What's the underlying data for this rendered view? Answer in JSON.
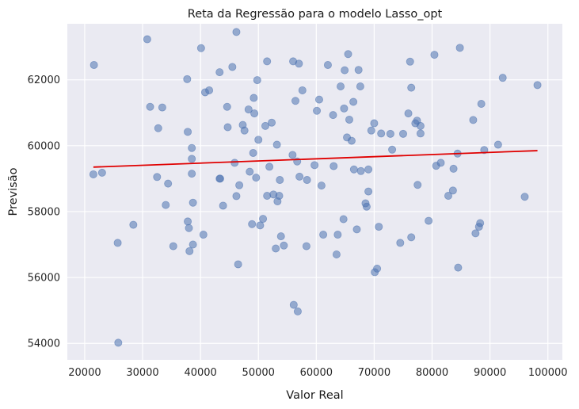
{
  "chart_data": {
    "type": "scatter",
    "title": "Reta da Regressão para o modelo Lasso_opt",
    "xlabel": "Valor Real",
    "ylabel": "Previsão",
    "xlim": [
      17000,
      102500
    ],
    "ylim": [
      53500,
      63700
    ],
    "xticks": [
      20000,
      30000,
      40000,
      50000,
      60000,
      70000,
      80000,
      90000,
      100000
    ],
    "yticks": [
      54000,
      56000,
      58000,
      60000,
      62000
    ],
    "grid": true,
    "colors": {
      "background": "#eaeaf2",
      "points": "#4c72b0",
      "regression_line": "#e00000"
    },
    "regression_line": {
      "x": [
        21500,
        98200
      ],
      "y": [
        59350,
        59850
      ]
    },
    "points": [
      [
        21600,
        62450
      ],
      [
        21500,
        59130
      ],
      [
        23000,
        59180
      ],
      [
        25700,
        57050
      ],
      [
        25800,
        54020
      ],
      [
        28400,
        57600
      ],
      [
        30800,
        63230
      ],
      [
        31300,
        61180
      ],
      [
        32500,
        59050
      ],
      [
        32700,
        60530
      ],
      [
        33400,
        61160
      ],
      [
        34000,
        58200
      ],
      [
        34400,
        58850
      ],
      [
        35300,
        56950
      ],
      [
        37700,
        62020
      ],
      [
        37800,
        60420
      ],
      [
        37800,
        57700
      ],
      [
        38000,
        57500
      ],
      [
        38100,
        56800
      ],
      [
        38500,
        59930
      ],
      [
        38500,
        59600
      ],
      [
        38500,
        59150
      ],
      [
        38700,
        58270
      ],
      [
        38700,
        57000
      ],
      [
        40100,
        62960
      ],
      [
        40500,
        57300
      ],
      [
        40800,
        61620
      ],
      [
        41500,
        61680
      ],
      [
        43300,
        62230
      ],
      [
        43300,
        59000
      ],
      [
        43400,
        59000
      ],
      [
        43900,
        58180
      ],
      [
        44600,
        61180
      ],
      [
        44700,
        60560
      ],
      [
        45500,
        62390
      ],
      [
        45900,
        59480
      ],
      [
        46200,
        63450
      ],
      [
        46200,
        58470
      ],
      [
        46500,
        56400
      ],
      [
        46700,
        58800
      ],
      [
        47300,
        60630
      ],
      [
        47600,
        60460
      ],
      [
        48300,
        61100
      ],
      [
        48500,
        59210
      ],
      [
        48900,
        57620
      ],
      [
        49100,
        59780
      ],
      [
        49200,
        61450
      ],
      [
        49300,
        60980
      ],
      [
        49600,
        59030
      ],
      [
        49800,
        61990
      ],
      [
        50000,
        60180
      ],
      [
        50300,
        57580
      ],
      [
        50800,
        57780
      ],
      [
        51200,
        60600
      ],
      [
        51500,
        62560
      ],
      [
        51500,
        58480
      ],
      [
        51900,
        59360
      ],
      [
        52300,
        60700
      ],
      [
        52600,
        58520
      ],
      [
        53000,
        56880
      ],
      [
        53200,
        60030
      ],
      [
        53300,
        58310
      ],
      [
        53600,
        58480
      ],
      [
        53700,
        58960
      ],
      [
        53900,
        57250
      ],
      [
        54400,
        56970
      ],
      [
        55900,
        59720
      ],
      [
        56000,
        62560
      ],
      [
        56100,
        55170
      ],
      [
        56400,
        61360
      ],
      [
        56700,
        59520
      ],
      [
        56800,
        54970
      ],
      [
        57000,
        62490
      ],
      [
        57100,
        59060
      ],
      [
        57600,
        61680
      ],
      [
        58300,
        56950
      ],
      [
        58400,
        58960
      ],
      [
        59700,
        59410
      ],
      [
        60100,
        61060
      ],
      [
        60500,
        61400
      ],
      [
        60900,
        58790
      ],
      [
        61200,
        57300
      ],
      [
        62000,
        62450
      ],
      [
        62900,
        60930
      ],
      [
        63000,
        59380
      ],
      [
        63500,
        56700
      ],
      [
        63700,
        57300
      ],
      [
        64200,
        61800
      ],
      [
        64700,
        57770
      ],
      [
        64800,
        61130
      ],
      [
        64900,
        62290
      ],
      [
        65300,
        60250
      ],
      [
        65500,
        62780
      ],
      [
        65700,
        60790
      ],
      [
        66100,
        60150
      ],
      [
        66400,
        61330
      ],
      [
        66500,
        59280
      ],
      [
        67000,
        57460
      ],
      [
        67300,
        62300
      ],
      [
        67600,
        61800
      ],
      [
        67700,
        59230
      ],
      [
        68500,
        58250
      ],
      [
        68700,
        58150
      ],
      [
        69000,
        59280
      ],
      [
        69000,
        58610
      ],
      [
        69500,
        60460
      ],
      [
        70000,
        60680
      ],
      [
        70100,
        56160
      ],
      [
        70500,
        56270
      ],
      [
        70800,
        57540
      ],
      [
        71200,
        60370
      ],
      [
        72800,
        60360
      ],
      [
        73100,
        59880
      ],
      [
        74500,
        57050
      ],
      [
        75000,
        60360
      ],
      [
        75900,
        60980
      ],
      [
        76200,
        62550
      ],
      [
        76400,
        61760
      ],
      [
        76400,
        57220
      ],
      [
        77100,
        60680
      ],
      [
        77400,
        60760
      ],
      [
        77500,
        58810
      ],
      [
        78000,
        60600
      ],
      [
        78000,
        60370
      ],
      [
        79400,
        57720
      ],
      [
        80400,
        62760
      ],
      [
        80700,
        59390
      ],
      [
        81500,
        59480
      ],
      [
        82800,
        58480
      ],
      [
        83600,
        58640
      ],
      [
        83700,
        59300
      ],
      [
        84400,
        59760
      ],
      [
        84500,
        56300
      ],
      [
        84800,
        62970
      ],
      [
        87100,
        60780
      ],
      [
        87500,
        57340
      ],
      [
        88100,
        57540
      ],
      [
        88300,
        57650
      ],
      [
        88500,
        61270
      ],
      [
        89000,
        59870
      ],
      [
        91400,
        60030
      ],
      [
        92200,
        62060
      ],
      [
        96000,
        58450
      ],
      [
        98200,
        61840
      ]
    ]
  }
}
